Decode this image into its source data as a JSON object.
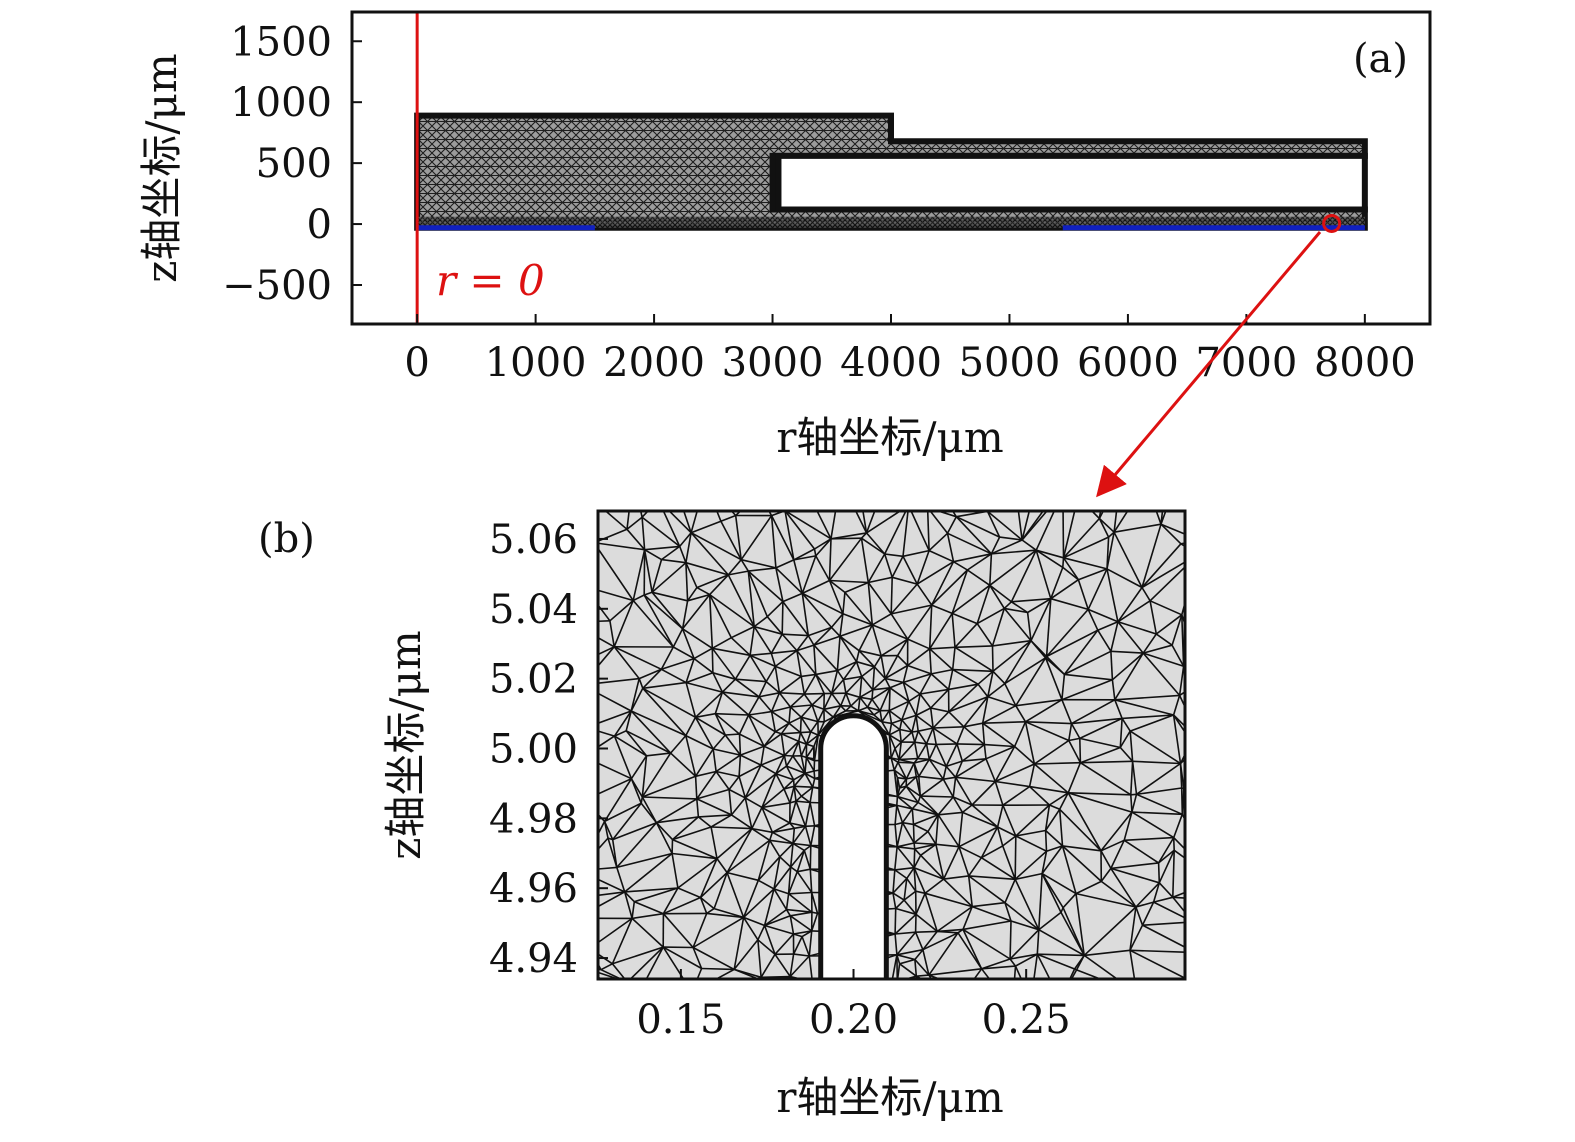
{
  "colors": {
    "axis": "#111111",
    "mesh_fill_a": "#8a8a8a",
    "mesh_fill_b": "#dcdcdc",
    "mesh_line": "#111111",
    "symmetry_axis": "#dd1111",
    "electrode": "#1020c0",
    "arrow": "#dd1111"
  },
  "panel_a": {
    "tag": "(a)",
    "x_ticks": [
      "0",
      "1000",
      "2000",
      "3000",
      "4000",
      "5000",
      "6000",
      "7000",
      "8000"
    ],
    "y_ticks": [
      "1500",
      "1000",
      "500",
      "0",
      "−500"
    ],
    "x_axis_title": "r轴坐标/μm",
    "y_axis_title": "z轴坐标/μm",
    "axis_annotation": "r = 0",
    "chart_data": {
      "type": "diagram",
      "xlim": [
        -550,
        8550
      ],
      "ylim": [
        -820,
        1740
      ],
      "domain_outline_um": [
        [
          0,
          -30
        ],
        [
          8000,
          -30
        ],
        [
          8000,
          120
        ],
        [
          3000,
          120
        ],
        [
          3000,
          560
        ],
        [
          8000,
          560
        ],
        [
          8000,
          680
        ],
        [
          4000,
          680
        ],
        [
          4000,
          890
        ],
        [
          0,
          890
        ]
      ],
      "cavity_um": [
        [
          3050,
          120
        ],
        [
          8000,
          120
        ],
        [
          8000,
          560
        ],
        [
          3050,
          560
        ]
      ],
      "symmetry_axis_r_um": 0,
      "electrodes_um": [
        [
          0,
          1500
        ],
        [
          5450,
          8000
        ]
      ],
      "zoom_marker_um": [
        7720,
        5
      ]
    }
  },
  "panel_b": {
    "tag": "(b)",
    "x_ticks": [
      "0.15",
      "0.20",
      "0.25"
    ],
    "y_ticks": [
      "5.06",
      "5.04",
      "5.02",
      "5.00",
      "4.98",
      "4.96",
      "4.94"
    ],
    "x_axis_title": "r轴坐标/μm",
    "y_axis_title": "z轴坐标/μm",
    "chart_data": {
      "type": "diagram",
      "xlim": [
        0.126,
        0.296
      ],
      "ylim": [
        4.934,
        5.068
      ],
      "x_tick_values": [
        0.15,
        0.2,
        0.25
      ],
      "y_tick_values": [
        5.06,
        5.04,
        5.02,
        5.0,
        4.98,
        4.96,
        4.94
      ],
      "tip_center_um": [
        0.2,
        5.0
      ],
      "tip_radius_um": 0.0095
    }
  }
}
